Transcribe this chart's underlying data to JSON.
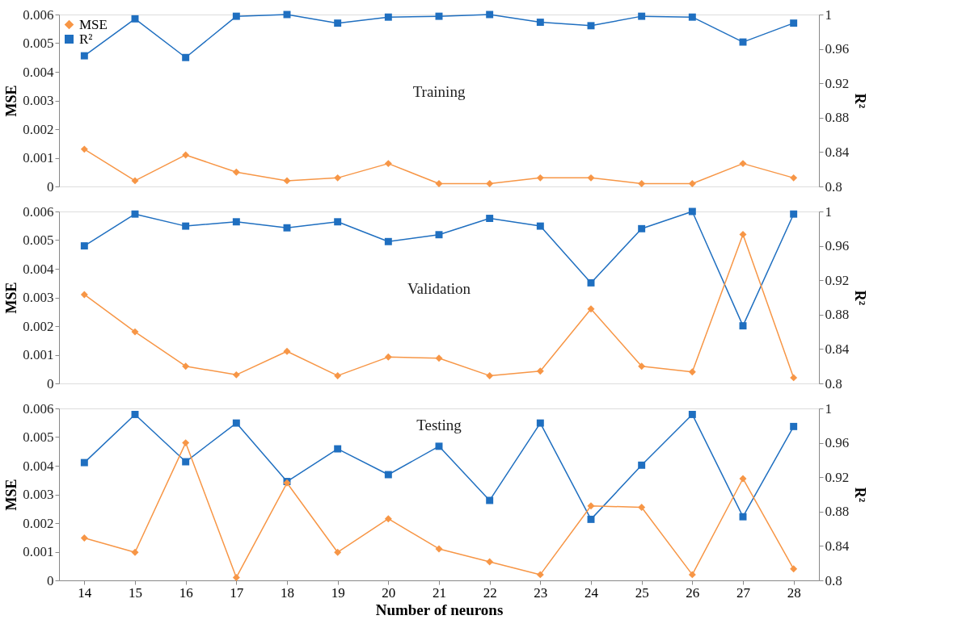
{
  "chart_data": [
    {
      "type": "line",
      "title": "Training",
      "categories": [
        "14",
        "15",
        "16",
        "17",
        "18",
        "19",
        "20",
        "21",
        "22",
        "23",
        "24",
        "25",
        "26",
        "27",
        "28"
      ],
      "ylabel": "MSE",
      "y2label": "R²",
      "ylim": [
        0,
        0.006
      ],
      "yticks": [
        0,
        0.001,
        0.002,
        0.003,
        0.004,
        0.005,
        0.006
      ],
      "y2lim": [
        0.8,
        1
      ],
      "y2ticks": [
        0.8,
        0.84,
        0.88,
        0.92,
        0.96,
        1
      ],
      "legend": "top left",
      "tick_labels": "y",
      "series": [
        {
          "name": "MSE",
          "color": "#f79646",
          "marker": "diamond",
          "values": [
            0.0013,
            0.0002,
            0.0011,
            0.0005,
            0.0002,
            0.0003,
            0.0008,
            0.0001,
            0.0001,
            0.0003,
            0.0003,
            0.0001,
            0.0001,
            0.0008,
            0.0003
          ]
        },
        {
          "name": "R²",
          "color": "#1f6fc0",
          "marker": "square",
          "axis": "y2",
          "values": [
            0.952,
            0.995,
            0.95,
            0.998,
            1.0,
            0.99,
            0.997,
            0.998,
            1.0,
            0.991,
            0.987,
            0.998,
            0.997,
            0.968,
            0.99
          ]
        }
      ]
    },
    {
      "type": "line",
      "title": "Validation",
      "categories": [
        "14",
        "15",
        "16",
        "17",
        "18",
        "19",
        "20",
        "21",
        "22",
        "23",
        "24",
        "25",
        "26",
        "27",
        "28"
      ],
      "ylabel": "MSE",
      "y2label": "R²",
      "ylim": [
        0,
        0.006
      ],
      "yticks": [
        0,
        0.001,
        0.002,
        0.003,
        0.004,
        0.005,
        0.006
      ],
      "y2lim": [
        0.8,
        1
      ],
      "y2ticks": [
        0.8,
        0.84,
        0.88,
        0.92,
        0.96,
        1
      ],
      "tick_labels": "y",
      "series": [
        {
          "color": "#f79646",
          "marker": "diamond",
          "values": [
            0.0031,
            0.0018,
            0.0006,
            0.0003,
            0.00112,
            0.00027,
            0.00092,
            0.00088,
            0.00027,
            0.00043,
            0.0026,
            0.0006,
            0.0004,
            0.0052,
            0.0002
          ]
        },
        {
          "color": "#1f6fc0",
          "marker": "square",
          "axis": "y2",
          "values": [
            0.96,
            0.997,
            0.983,
            0.988,
            0.981,
            0.988,
            0.965,
            0.973,
            0.992,
            0.983,
            0.917,
            0.98,
            1.0,
            0.867,
            0.997
          ]
        }
      ]
    },
    {
      "type": "line",
      "title": "Testing",
      "categories": [
        "14",
        "15",
        "16",
        "17",
        "18",
        "19",
        "20",
        "21",
        "22",
        "23",
        "24",
        "25",
        "26",
        "27",
        "28"
      ],
      "xlabel": "Number of neurons",
      "ylabel": "MSE",
      "y2label": "R²",
      "ylim": [
        0,
        0.006
      ],
      "yticks": [
        0,
        0.001,
        0.002,
        0.003,
        0.004,
        0.005,
        0.006
      ],
      "y2lim": [
        0.8,
        1
      ],
      "y2ticks": [
        0.8,
        0.84,
        0.88,
        0.92,
        0.96,
        1
      ],
      "series": [
        {
          "color": "#f79646",
          "marker": "diamond",
          "values": [
            0.00148,
            0.00098,
            0.0048,
            0.0001,
            0.0034,
            0.00098,
            0.00215,
            0.0011,
            0.00065,
            0.0002,
            0.0026,
            0.00255,
            0.0002,
            0.00355,
            0.0004
          ]
        },
        {
          "color": "#1f6fc0",
          "marker": "square",
          "axis": "y2",
          "values": [
            0.937,
            0.993,
            0.938,
            0.983,
            0.915,
            0.953,
            0.923,
            0.956,
            0.893,
            0.983,
            0.871,
            0.934,
            0.993,
            0.874,
            0.979
          ]
        }
      ]
    }
  ]
}
